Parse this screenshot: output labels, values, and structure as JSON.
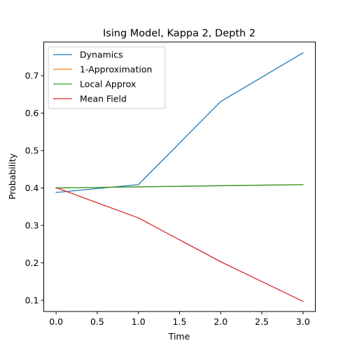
{
  "chart_data": {
    "type": "line",
    "title": "Ising Model, Kappa 2, Depth 2",
    "xlabel": "Time",
    "ylabel": "Probability",
    "xlim": [
      -0.15,
      3.15
    ],
    "ylim": [
      0.07,
      0.79
    ],
    "xticks": [
      0.0,
      0.5,
      1.0,
      1.5,
      2.0,
      2.5,
      3.0
    ],
    "xtick_labels": [
      "0.0",
      "0.5",
      "1.0",
      "1.5",
      "2.0",
      "2.5",
      "3.0"
    ],
    "yticks": [
      0.1,
      0.2,
      0.3,
      0.4,
      0.5,
      0.6,
      0.7
    ],
    "ytick_labels": [
      "0.1",
      "0.2",
      "0.3",
      "0.4",
      "0.5",
      "0.6",
      "0.7"
    ],
    "grid": false,
    "legend_position": "upper-left",
    "series": [
      {
        "name": "Dynamics",
        "color": "#1f77b4",
        "x": [
          0,
          1,
          2,
          3
        ],
        "y": [
          0.388,
          0.409,
          0.631,
          0.761
        ]
      },
      {
        "name": "1-Approximation",
        "color": "#ff7f0e",
        "x": [
          0,
          1,
          2,
          3
        ],
        "y": [
          0.4,
          0.403,
          0.406,
          0.409
        ]
      },
      {
        "name": "Local Approx",
        "color": "#2ca02c",
        "x": [
          0,
          1,
          2,
          3
        ],
        "y": [
          0.4,
          0.403,
          0.406,
          0.409
        ]
      },
      {
        "name": "Mean Field",
        "color": "#d62728",
        "x": [
          0,
          1,
          2,
          3
        ],
        "y": [
          0.401,
          0.32,
          0.203,
          0.097
        ]
      }
    ]
  }
}
